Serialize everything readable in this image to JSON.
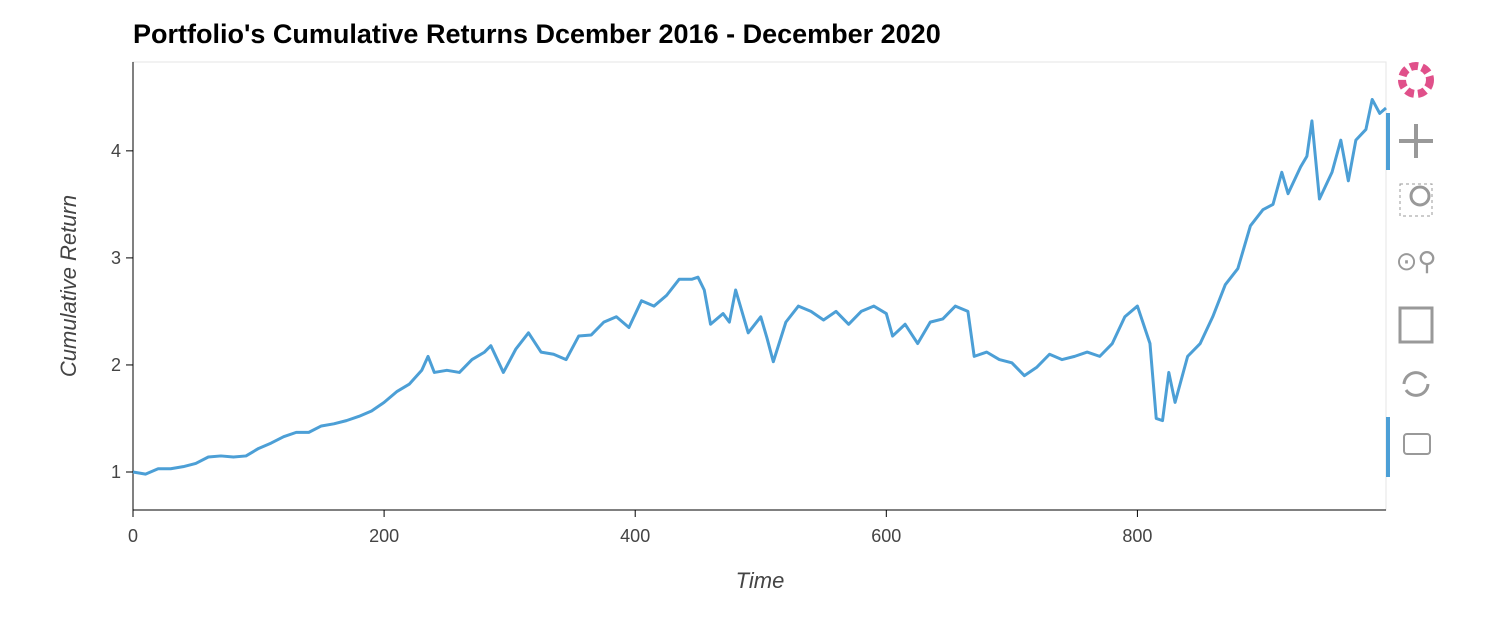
{
  "chart_data": {
    "type": "line",
    "title": "Portfolio's Cumulative Returns Dcember 2016 - December 2020",
    "x_label": "Time",
    "y_label": "Cumulative Return",
    "x": [
      0,
      10,
      20,
      30,
      40,
      50,
      60,
      70,
      80,
      90,
      100,
      110,
      120,
      130,
      140,
      150,
      160,
      170,
      180,
      190,
      200,
      210,
      220,
      230,
      235,
      240,
      250,
      260,
      270,
      280,
      285,
      295,
      305,
      315,
      325,
      335,
      345,
      355,
      365,
      375,
      385,
      395,
      405,
      415,
      425,
      435,
      445,
      450,
      455,
      460,
      470,
      475,
      480,
      490,
      500,
      505,
      510,
      520,
      530,
      540,
      550,
      560,
      570,
      580,
      590,
      600,
      605,
      615,
      625,
      635,
      645,
      655,
      665,
      670,
      680,
      690,
      700,
      710,
      720,
      730,
      740,
      750,
      760,
      770,
      780,
      790,
      800,
      810,
      815,
      820,
      825,
      830,
      840,
      850,
      860,
      870,
      880,
      890,
      900,
      908,
      915,
      920,
      930,
      935,
      939,
      945,
      955,
      962,
      968,
      974,
      982,
      987,
      993,
      998
    ],
    "series": [
      {
        "name": "Cumulative Return",
        "color": "#4c9fd6",
        "values": [
          1.0,
          0.98,
          1.03,
          1.03,
          1.05,
          1.08,
          1.14,
          1.15,
          1.14,
          1.15,
          1.22,
          1.27,
          1.33,
          1.37,
          1.37,
          1.43,
          1.45,
          1.48,
          1.52,
          1.57,
          1.65,
          1.75,
          1.82,
          1.95,
          2.08,
          1.93,
          1.95,
          1.93,
          2.05,
          2.12,
          2.18,
          1.93,
          2.15,
          2.3,
          2.12,
          2.1,
          2.05,
          2.27,
          2.28,
          2.4,
          2.45,
          2.35,
          2.6,
          2.55,
          2.65,
          2.8,
          2.8,
          2.82,
          2.7,
          2.38,
          2.48,
          2.4,
          2.7,
          2.3,
          2.45,
          2.25,
          2.03,
          2.4,
          2.55,
          2.5,
          2.42,
          2.5,
          2.38,
          2.5,
          2.55,
          2.48,
          2.27,
          2.38,
          2.2,
          2.4,
          2.43,
          2.55,
          2.5,
          2.08,
          2.12,
          2.05,
          2.02,
          1.9,
          1.98,
          2.1,
          2.05,
          2.08,
          2.12,
          2.08,
          2.2,
          2.45,
          2.55,
          2.2,
          1.5,
          1.48,
          1.93,
          1.65,
          2.08,
          2.2,
          2.45,
          2.75,
          2.9,
          3.3,
          3.45,
          3.5,
          3.8,
          3.6,
          3.85,
          3.95,
          4.28,
          3.55,
          3.8,
          4.1,
          3.72,
          4.1,
          4.2,
          4.48,
          4.35,
          4.4
        ]
      }
    ],
    "xlim": [
      0,
      998
    ],
    "ylim": [
      0.645,
      4.83
    ],
    "xticks": [
      0,
      200,
      400,
      600,
      800
    ],
    "yticks": [
      1,
      2,
      3,
      4
    ]
  }
}
